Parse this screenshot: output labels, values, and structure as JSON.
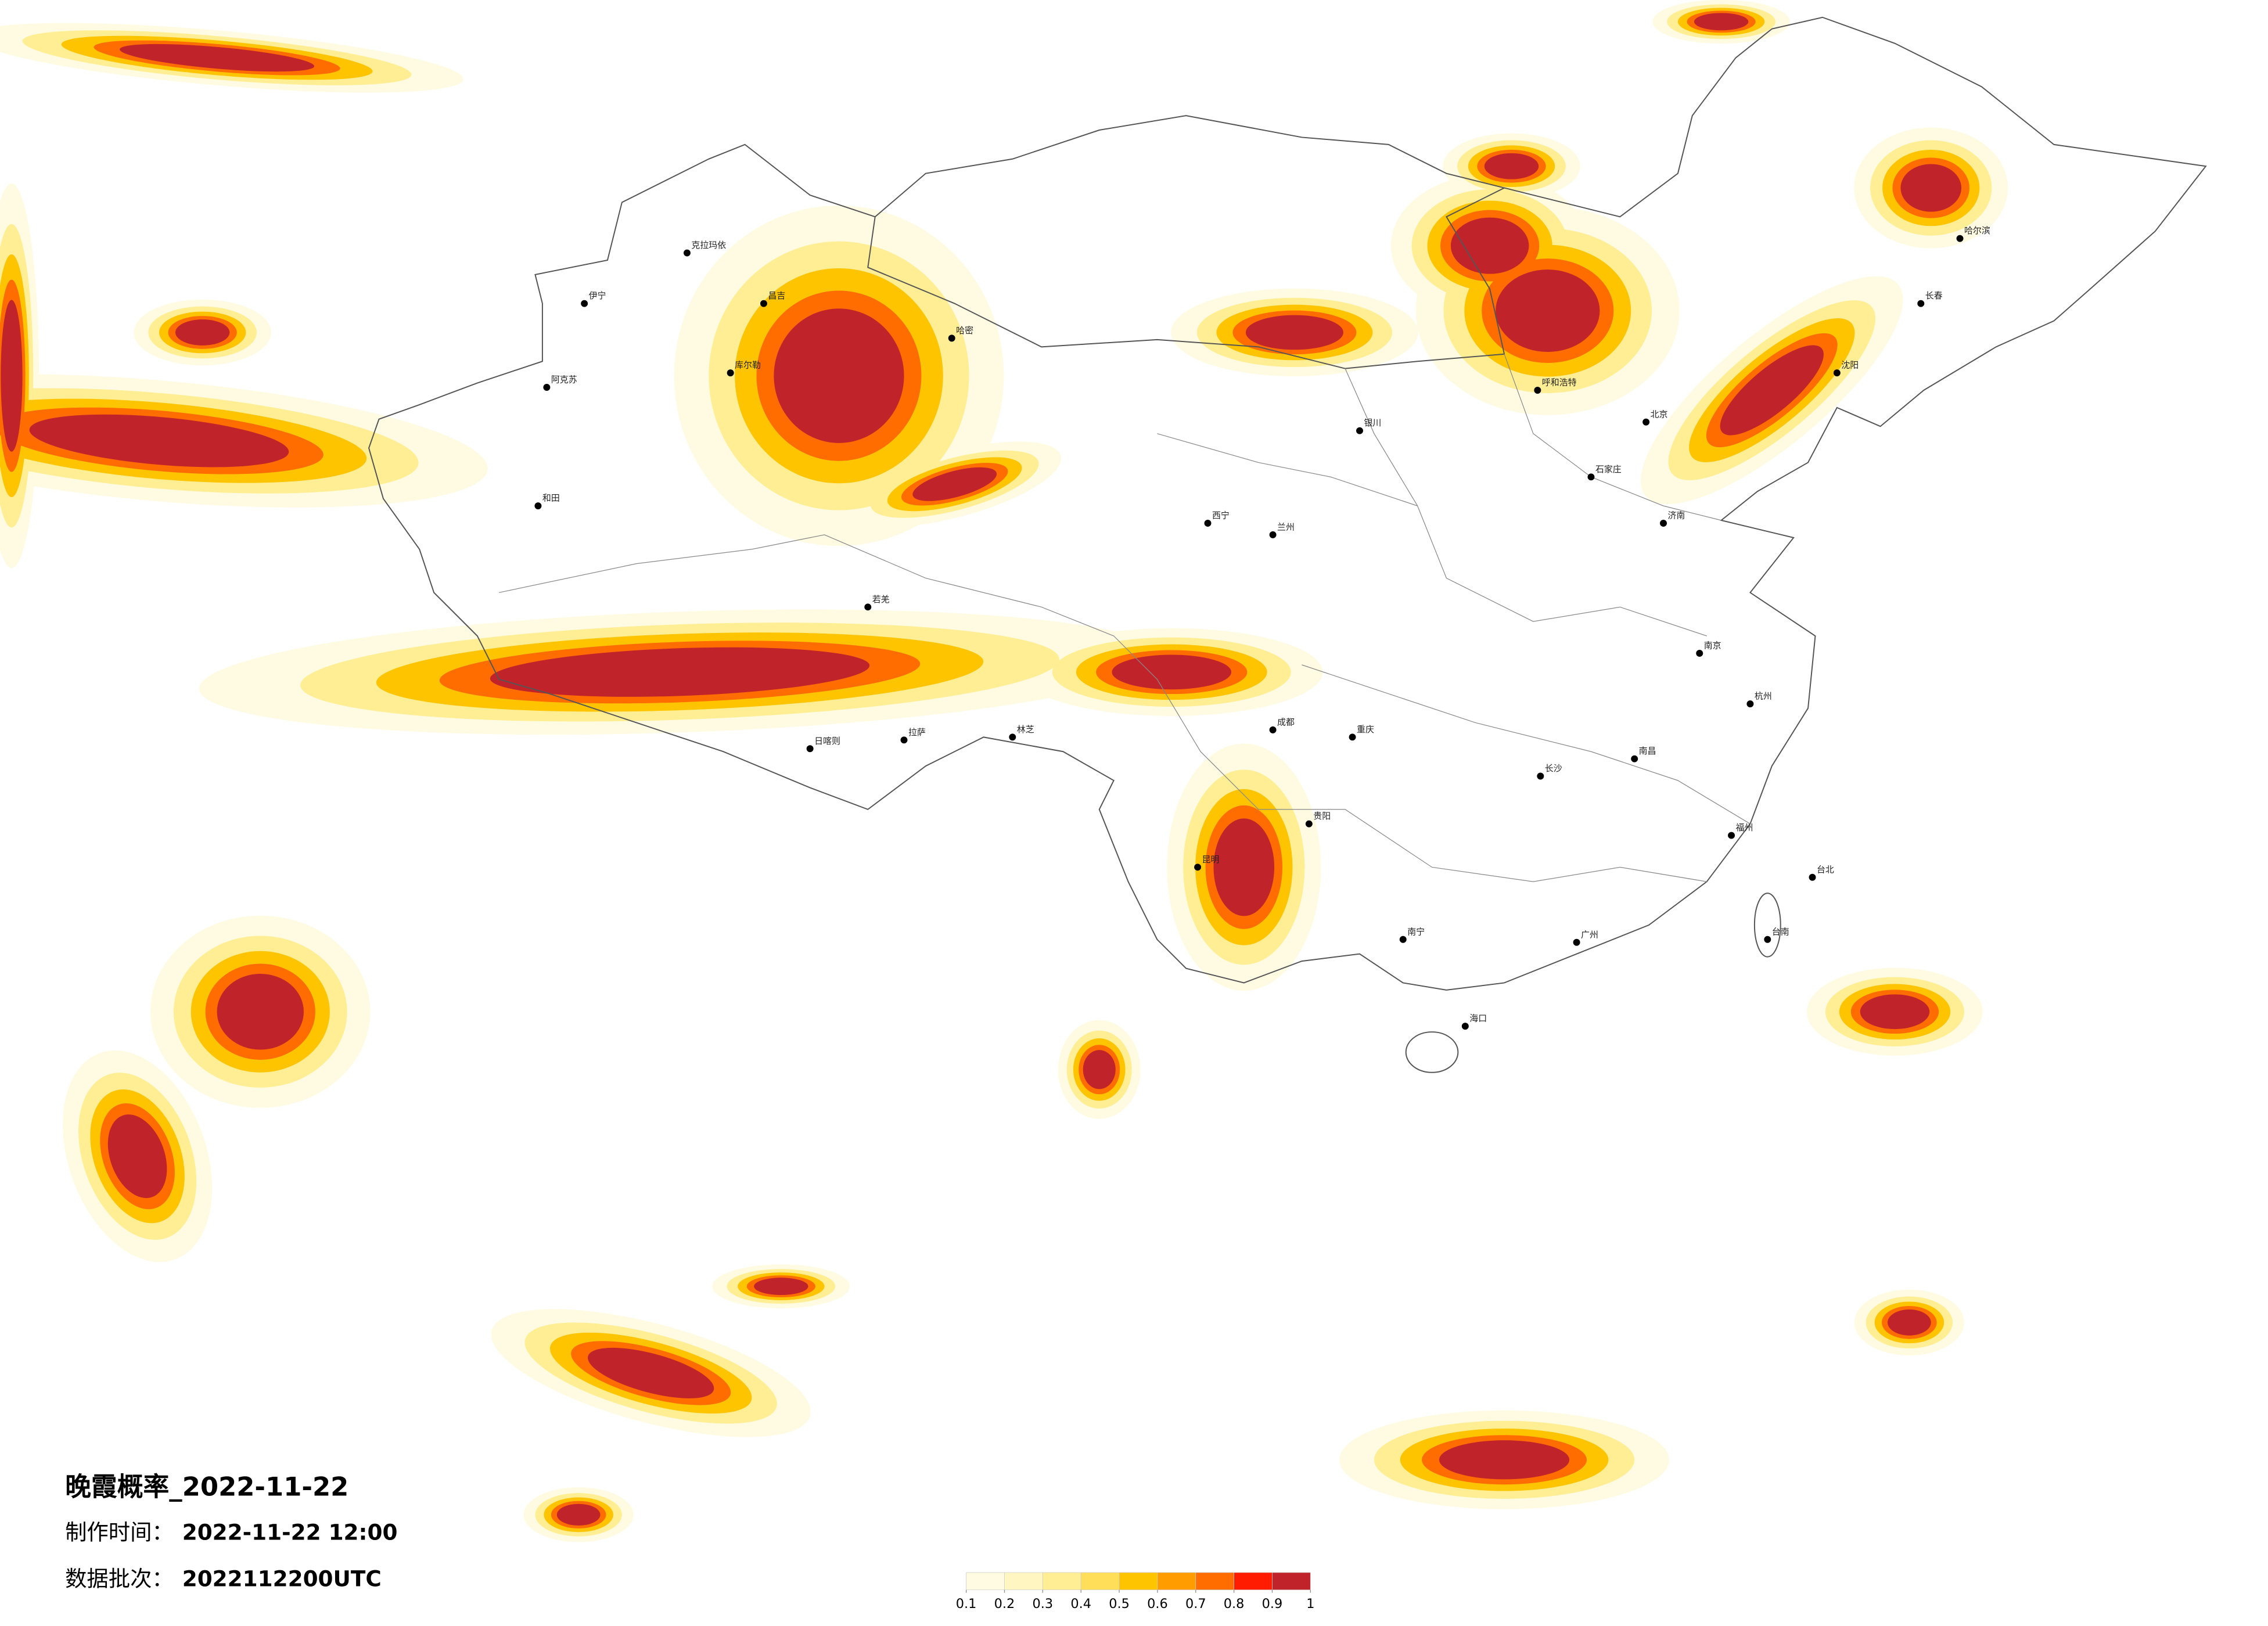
{
  "map": {
    "title": "晚霞概率_2022-11-22",
    "made_label": "制作时间：",
    "made_value": "2022-11-22 12:00",
    "batch_label": "数据批次：",
    "batch_value": "2022112200UTC",
    "cities": [
      "克拉玛依",
      "伊宁",
      "昌吉",
      "库尔勒",
      "阿克苏",
      "和田",
      "哈密",
      "若羌",
      "日喀则",
      "拉萨",
      "林芝",
      "呼和浩特",
      "银川",
      "兰州",
      "西宁",
      "成都",
      "重庆",
      "昆明",
      "贵阳",
      "南宁",
      "海口",
      "长沙",
      "南昌",
      "福州",
      "杭州",
      "南京",
      "济南",
      "石家庄",
      "北京",
      "沈阳",
      "长春",
      "哈尔滨",
      "台北",
      "台南",
      "广州"
    ],
    "legend": {
      "ticks": [
        0.1,
        0.2,
        0.3,
        0.4,
        0.5,
        0.6,
        0.7,
        0.8,
        0.9,
        1
      ],
      "colors": [
        "#fffbe3",
        "#fff6c2",
        "#ffee94",
        "#ffde5a",
        "#ffc400",
        "#ff9c00",
        "#ff6c00",
        "#ff1c00",
        "#c0242a"
      ]
    }
  }
}
